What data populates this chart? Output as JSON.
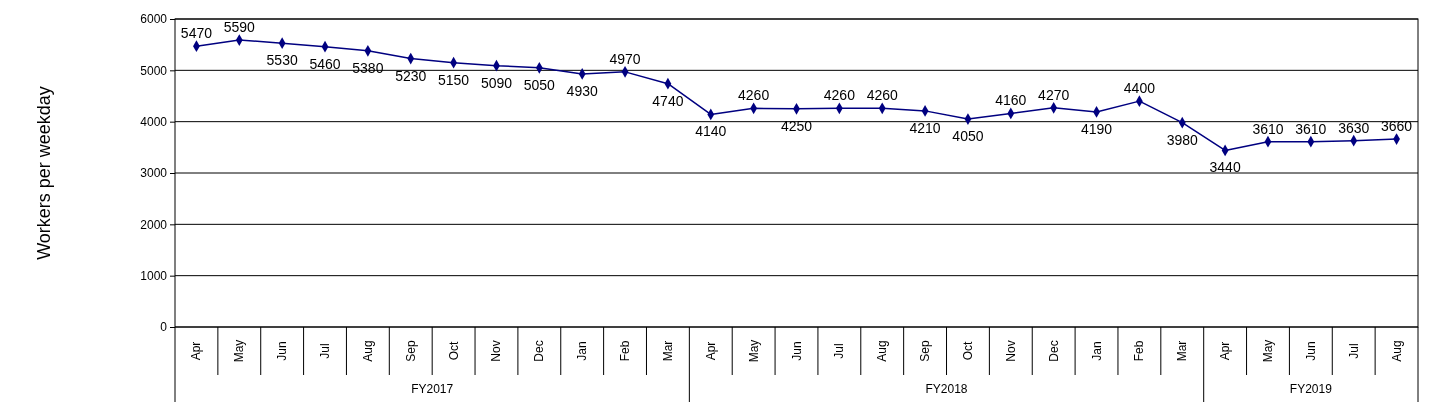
{
  "chart_data": {
    "type": "line",
    "ylabel": "Workers per weekday",
    "categories": [
      "Apr",
      "May",
      "Jun",
      "Jul",
      "Aug",
      "Sep",
      "Oct",
      "Nov",
      "Dec",
      "Jan",
      "Feb",
      "Mar",
      "Apr",
      "May",
      "Jun",
      "Jul",
      "Aug",
      "Sep",
      "Oct",
      "Nov",
      "Dec",
      "Jan",
      "Feb",
      "Mar",
      "Apr",
      "May",
      "Jun",
      "Jul",
      "Aug"
    ],
    "series": [
      {
        "color": "#000080",
        "values": [
          5470,
          5590,
          5530,
          5460,
          5380,
          5230,
          5150,
          5090,
          5050,
          4930,
          4970,
          4740,
          4140,
          4260,
          4250,
          4260,
          4260,
          4210,
          4050,
          4160,
          4270,
          4190,
          4400,
          3980,
          3440,
          3610,
          3610,
          3630,
          3660
        ]
      }
    ],
    "ylim": [
      0,
      6000
    ],
    "yticks": [
      0,
      1000,
      2000,
      3000,
      4000,
      5000,
      6000
    ],
    "grid": "y",
    "marker": "diamond",
    "line_style": "solid",
    "data_labels": true,
    "annotations": [
      "FY2017",
      "FY2018",
      "FY2019"
    ]
  }
}
